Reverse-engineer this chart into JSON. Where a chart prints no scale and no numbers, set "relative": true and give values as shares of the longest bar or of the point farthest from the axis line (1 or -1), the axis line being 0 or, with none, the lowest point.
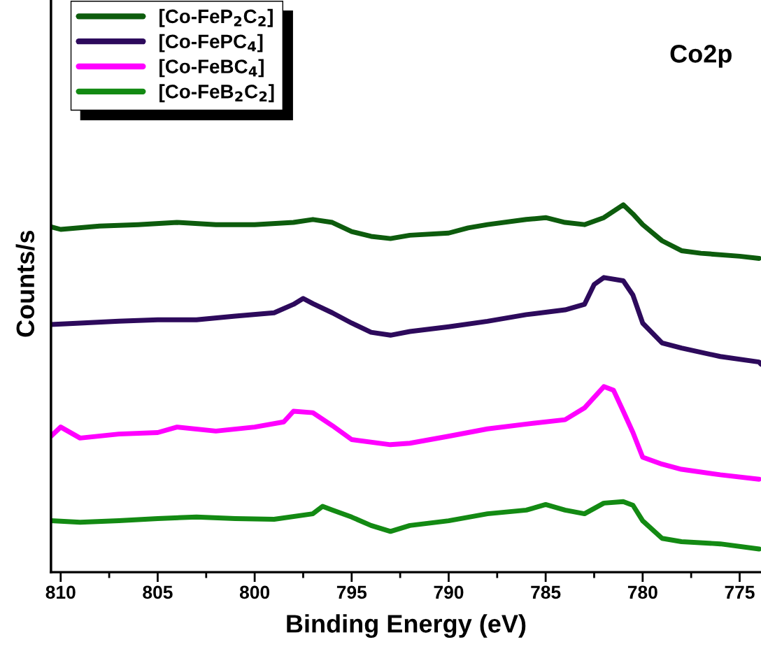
{
  "chart_data": {
    "type": "line",
    "title": "Co2p",
    "xlabel": "Binding Energy (eV)",
    "ylabel": "Counts/s",
    "relative": true,
    "xlim": [
      810.5,
      773.9
    ],
    "xticks": [
      810,
      805,
      800,
      795,
      790,
      785,
      780,
      775
    ],
    "legend": "top left",
    "grid": false,
    "line_style": "solid",
    "marker": "none",
    "x": [
      810.5,
      810,
      808,
      806,
      804,
      802,
      800,
      798,
      797,
      796,
      795,
      794,
      793,
      792,
      790,
      789,
      788,
      786,
      785,
      784,
      783,
      782,
      781,
      780.5,
      780,
      779,
      778,
      777,
      775,
      774
    ],
    "series": [
      {
        "name": "[Co-FeP$_{2}$C$_{2}$]",
        "color": "#0d5c0d",
        "values": [
          0.94,
          0.933,
          0.942,
          0.946,
          0.952,
          0.946,
          0.946,
          0.952,
          0.96,
          0.952,
          0.927,
          0.914,
          0.908,
          0.917,
          0.923,
          0.937,
          0.946,
          0.96,
          0.965,
          0.952,
          0.946,
          0.965,
          1.0,
          0.975,
          0.946,
          0.902,
          0.875,
          0.868,
          0.86,
          0.854
        ]
      },
      {
        "name": "[Co-FePC$_{4}$]",
        "color": "#2d0a5c",
        "x": [
          810.5,
          809,
          807,
          805,
          803,
          801,
          799,
          798,
          797.5,
          797,
          796,
          795,
          794,
          793,
          792,
          790,
          788,
          786,
          784,
          783,
          782.5,
          782,
          781,
          780.5,
          780,
          779,
          778,
          776,
          774,
          773.9
        ],
        "values": [
          0.674,
          0.678,
          0.683,
          0.687,
          0.687,
          0.697,
          0.706,
          0.729,
          0.745,
          0.731,
          0.706,
          0.678,
          0.653,
          0.645,
          0.655,
          0.668,
          0.683,
          0.701,
          0.714,
          0.729,
          0.783,
          0.802,
          0.793,
          0.754,
          0.678,
          0.624,
          0.61,
          0.587,
          0.572,
          0.566
        ]
      },
      {
        "name": "[Co-FeBC$_{4}$]",
        "color": "#ff00ff",
        "x": [
          810.5,
          810,
          809,
          807,
          805,
          804,
          802,
          800,
          798.5,
          798,
          797,
          796,
          795,
          793,
          792,
          790,
          788,
          786,
          784,
          783,
          782,
          781.5,
          781,
          780.5,
          780,
          779,
          778,
          776,
          774
        ],
        "values": [
          0.37,
          0.395,
          0.365,
          0.376,
          0.38,
          0.395,
          0.384,
          0.395,
          0.409,
          0.438,
          0.434,
          0.399,
          0.361,
          0.347,
          0.351,
          0.37,
          0.39,
          0.403,
          0.415,
          0.447,
          0.505,
          0.495,
          0.438,
          0.38,
          0.313,
          0.294,
          0.28,
          0.265,
          0.253
        ]
      },
      {
        "name": "[Co-FeB$_{2}$C$_{2}$]",
        "color": "#138a13",
        "x": [
          810.5,
          809,
          807,
          805,
          803,
          801,
          799,
          797,
          796.5,
          796,
          795,
          794,
          793,
          792,
          790,
          788,
          786,
          785,
          784,
          783,
          782,
          781,
          780.5,
          780,
          779,
          778,
          776,
          774
        ],
        "values": [
          0.14,
          0.136,
          0.14,
          0.146,
          0.15,
          0.146,
          0.144,
          0.159,
          0.179,
          0.169,
          0.15,
          0.127,
          0.111,
          0.127,
          0.14,
          0.159,
          0.169,
          0.184,
          0.169,
          0.159,
          0.188,
          0.192,
          0.182,
          0.14,
          0.092,
          0.083,
          0.077,
          0.063
        ]
      }
    ]
  }
}
